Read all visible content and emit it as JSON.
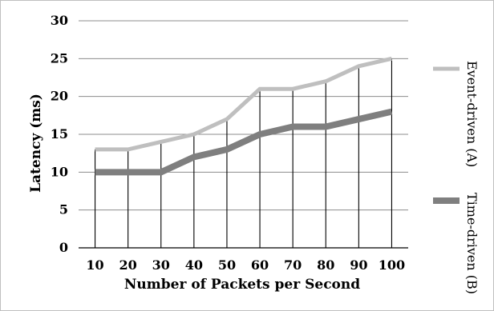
{
  "chart_data": {
    "type": "line",
    "xlabel": "Number of Packets per Second",
    "ylabel": "Latency (ms)",
    "categories": [
      "10",
      "20",
      "30",
      "40",
      "50",
      "60",
      "70",
      "80",
      "90",
      "100"
    ],
    "ylim": [
      0,
      30
    ],
    "yticks": [
      "0",
      "5",
      "10",
      "15",
      "20",
      "25",
      "30"
    ],
    "grid": "horizontal",
    "drop_lines": true,
    "legend_placement": "right",
    "series": [
      {
        "name": "Event-driven (A)",
        "color": "#bfbfbf",
        "values": [
          13,
          13,
          14,
          15,
          17,
          21,
          21,
          22,
          24,
          25
        ]
      },
      {
        "name": "Time-driven (B)",
        "color": "#7f7f7f",
        "values": [
          10,
          10,
          10,
          12,
          13,
          15,
          16,
          16,
          17,
          18
        ]
      }
    ]
  }
}
